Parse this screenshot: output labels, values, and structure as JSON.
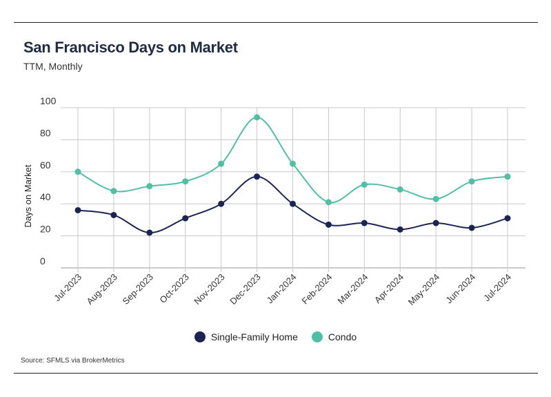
{
  "header": {
    "title": "San Francisco Days on Market",
    "subtitle": "TTM, Monthly"
  },
  "footer": {
    "source": "Source:  SFMLS via BrokerMetrics"
  },
  "colors": {
    "single_family": "#1b2454",
    "condo": "#4fbfa5",
    "grid": "#c8c8c8"
  },
  "chart_data": {
    "type": "line",
    "title": "San Francisco Days on Market",
    "subtitle": "TTM, Monthly",
    "xlabel": "",
    "ylabel": "Days on Market",
    "ylim": [
      0,
      100
    ],
    "yticks": [
      0,
      20,
      40,
      60,
      80,
      100
    ],
    "grid": true,
    "legend_position": "bottom-center",
    "categories": [
      "Jul-2023",
      "Aug-2023",
      "Sep-2023",
      "Oct-2023",
      "Nov-2023",
      "Dec-2023",
      "Jan-2024",
      "Feb-2024",
      "Mar-2024",
      "Apr-2024",
      "May-2024",
      "Jun-2024",
      "Jul-2024"
    ],
    "series": [
      {
        "name": "Single-Family Home",
        "color": "#1b2454",
        "values": [
          36,
          33,
          22,
          31,
          40,
          57,
          40,
          27,
          28,
          24,
          28,
          25,
          31
        ]
      },
      {
        "name": "Condo",
        "color": "#4fbfa5",
        "values": [
          60,
          48,
          51,
          54,
          65,
          94,
          65,
          41,
          52,
          49,
          43,
          54,
          57
        ]
      }
    ]
  }
}
